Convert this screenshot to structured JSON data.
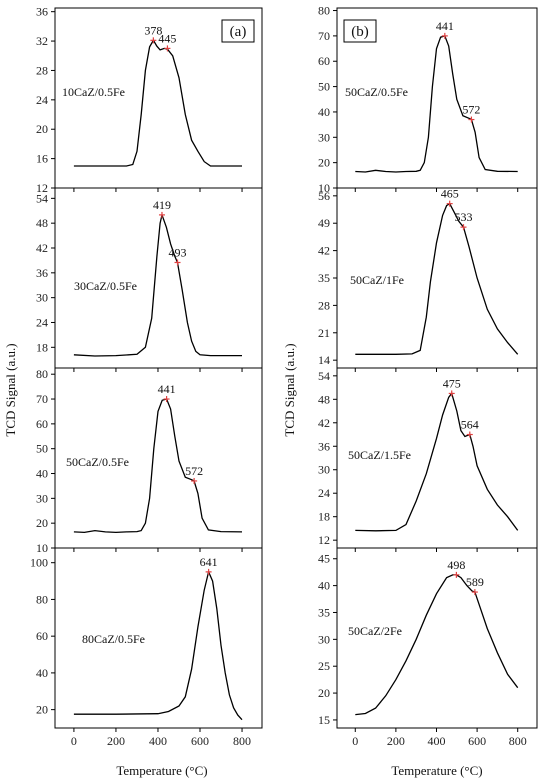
{
  "panel_tags": [
    "(a)",
    "(b)"
  ],
  "xlabel": "Temperature (°C)",
  "ylabel": "TCD Signal (a.u.)",
  "x_ticks": [
    0,
    200,
    400,
    600,
    800
  ],
  "chart_data": [
    {
      "type": "line",
      "column": 0,
      "row": 0,
      "label": "10CaZ/0.5Fe",
      "xlim": [
        -90,
        895
      ],
      "ylim": [
        12,
        36.5
      ],
      "yticks": [
        12,
        16,
        20,
        24,
        28,
        32,
        36
      ],
      "peaks": [
        {
          "x": 378,
          "y": 32.1,
          "label": "378"
        },
        {
          "x": 445,
          "y": 31.0,
          "label": "445"
        }
      ],
      "x": [
        0,
        150,
        250,
        280,
        300,
        320,
        340,
        360,
        378,
        395,
        410,
        430,
        445,
        470,
        500,
        530,
        560,
        590,
        620,
        650,
        700,
        800
      ],
      "y": [
        15,
        15,
        15,
        15.2,
        17,
        22,
        28,
        31.2,
        32.1,
        31.3,
        30.8,
        31.0,
        30.9,
        30.0,
        27.0,
        22.0,
        18.5,
        17.0,
        15.6,
        15.0,
        15.0,
        15.0
      ]
    },
    {
      "type": "line",
      "column": 0,
      "row": 1,
      "label": "30CaZ/0.5Fe",
      "xlim": [
        -90,
        895
      ],
      "ylim": [
        13,
        56.5
      ],
      "yticks": [
        18,
        24,
        30,
        36,
        42,
        48,
        54
      ],
      "peaks": [
        {
          "x": 419,
          "y": 50,
          "label": "419"
        },
        {
          "x": 493,
          "y": 38.5,
          "label": "493"
        }
      ],
      "x": [
        0,
        100,
        200,
        300,
        340,
        370,
        395,
        410,
        419,
        440,
        460,
        480,
        493,
        515,
        540,
        560,
        580,
        600,
        650,
        700,
        800
      ],
      "y": [
        16.2,
        15.9,
        16,
        16.3,
        18,
        25,
        40,
        48,
        50,
        47,
        43,
        40,
        38.5,
        32,
        24,
        19.5,
        17,
        16.2,
        16,
        16,
        16
      ]
    },
    {
      "type": "line",
      "column": 0,
      "row": 2,
      "label": "50CaZ/0.5Fe",
      "xlim": [
        -90,
        895
      ],
      "ylim": [
        10,
        82.5
      ],
      "yticks": [
        10,
        20,
        30,
        40,
        50,
        60,
        70,
        80
      ],
      "peaks": [
        {
          "x": 441,
          "y": 70,
          "label": "441"
        },
        {
          "x": 572,
          "y": 37,
          "label": "572"
        }
      ],
      "x": [
        0,
        50,
        100,
        150,
        200,
        250,
        300,
        320,
        340,
        360,
        380,
        400,
        420,
        441,
        460,
        480,
        500,
        530,
        560,
        572,
        590,
        610,
        640,
        700,
        800
      ],
      "y": [
        16.5,
        16.3,
        17,
        16.5,
        16.3,
        16.5,
        16.6,
        17,
        20,
        30,
        50,
        65,
        69.5,
        70,
        66,
        55,
        45,
        38.5,
        37.5,
        37,
        32,
        22,
        17.3,
        16.6,
        16.5
      ]
    },
    {
      "type": "line",
      "column": 0,
      "row": 3,
      "label": "80CaZ/0.5Fe",
      "xlim": [
        -90,
        895
      ],
      "ylim": [
        10,
        108
      ],
      "yticks": [
        20,
        40,
        60,
        80,
        100
      ],
      "peaks": [
        {
          "x": 641,
          "y": 95,
          "label": "641"
        }
      ],
      "x": [
        0,
        200,
        400,
        450,
        500,
        530,
        560,
        590,
        620,
        641,
        660,
        680,
        700,
        720,
        740,
        760,
        780,
        800
      ],
      "y": [
        17.5,
        17.5,
        17.8,
        19,
        22,
        27,
        42,
        65,
        85,
        95,
        90,
        75,
        55,
        40,
        28,
        21,
        17,
        14.5
      ]
    },
    {
      "type": "line",
      "column": 1,
      "row": 0,
      "label": "50CaZ/0.5Fe",
      "xlim": [
        -90,
        895
      ],
      "ylim": [
        10,
        81
      ],
      "yticks": [
        10,
        20,
        30,
        40,
        50,
        60,
        70,
        80
      ],
      "peaks": [
        {
          "x": 441,
          "y": 70,
          "label": "441"
        },
        {
          "x": 572,
          "y": 37,
          "label": "572"
        }
      ],
      "x": [
        0,
        50,
        100,
        150,
        200,
        250,
        300,
        320,
        340,
        360,
        380,
        400,
        420,
        441,
        460,
        480,
        500,
        530,
        560,
        572,
        590,
        610,
        640,
        700,
        800
      ],
      "y": [
        16.5,
        16.3,
        17,
        16.5,
        16.3,
        16.5,
        16.6,
        17,
        20,
        30,
        50,
        65,
        69.5,
        70,
        66,
        55,
        45,
        38.5,
        37.5,
        37,
        32,
        22,
        17.3,
        16.6,
        16.5
      ]
    },
    {
      "type": "line",
      "column": 1,
      "row": 1,
      "label": "50CaZ/1Fe",
      "xlim": [
        -90,
        895
      ],
      "ylim": [
        12,
        58
      ],
      "yticks": [
        14,
        21,
        28,
        35,
        42,
        49,
        56
      ],
      "peaks": [
        {
          "x": 465,
          "y": 54,
          "label": "465"
        },
        {
          "x": 533,
          "y": 48,
          "label": "533"
        }
      ],
      "x": [
        0,
        100,
        200,
        280,
        320,
        350,
        370,
        400,
        430,
        450,
        465,
        490,
        510,
        533,
        560,
        600,
        650,
        700,
        750,
        800
      ],
      "y": [
        15.5,
        15.5,
        15.5,
        15.6,
        16.5,
        25,
        34,
        44,
        51,
        53.5,
        54,
        51.5,
        49.5,
        48,
        43,
        35,
        27,
        22,
        18.5,
        15.5
      ]
    },
    {
      "type": "line",
      "column": 1,
      "row": 2,
      "label": "50CaZ/1.5Fe",
      "xlim": [
        -90,
        895
      ],
      "ylim": [
        10,
        56
      ],
      "yticks": [
        12,
        18,
        24,
        30,
        36,
        42,
        48,
        54
      ],
      "peaks": [
        {
          "x": 475,
          "y": 49.5,
          "label": "475"
        },
        {
          "x": 564,
          "y": 39,
          "label": "564"
        }
      ],
      "x": [
        0,
        100,
        200,
        250,
        300,
        350,
        400,
        430,
        460,
        475,
        500,
        520,
        540,
        564,
        580,
        600,
        650,
        700,
        750,
        800
      ],
      "y": [
        14.5,
        14.4,
        14.5,
        16,
        22,
        29,
        38,
        44,
        48.5,
        49.5,
        45,
        40,
        38.5,
        39,
        36,
        31,
        25,
        21,
        18,
        14.5
      ]
    },
    {
      "type": "line",
      "column": 1,
      "row": 3,
      "label": "50CaZ/2Fe",
      "xlim": [
        -90,
        895
      ],
      "ylim": [
        13.5,
        47
      ],
      "yticks": [
        15,
        20,
        25,
        30,
        35,
        40,
        45
      ],
      "peaks": [
        {
          "x": 498,
          "y": 42,
          "label": "498"
        },
        {
          "x": 589,
          "y": 38.8,
          "label": "589"
        }
      ],
      "x": [
        0,
        50,
        100,
        150,
        200,
        250,
        300,
        350,
        400,
        450,
        480,
        498,
        520,
        550,
        575,
        589,
        610,
        650,
        700,
        750,
        800
      ],
      "y": [
        16,
        16.2,
        17.2,
        19.5,
        22.5,
        26,
        30,
        34.5,
        38.5,
        41.5,
        42,
        42,
        41.5,
        40,
        39,
        38.8,
        36.5,
        32,
        27.5,
        23.5,
        21
      ]
    }
  ]
}
